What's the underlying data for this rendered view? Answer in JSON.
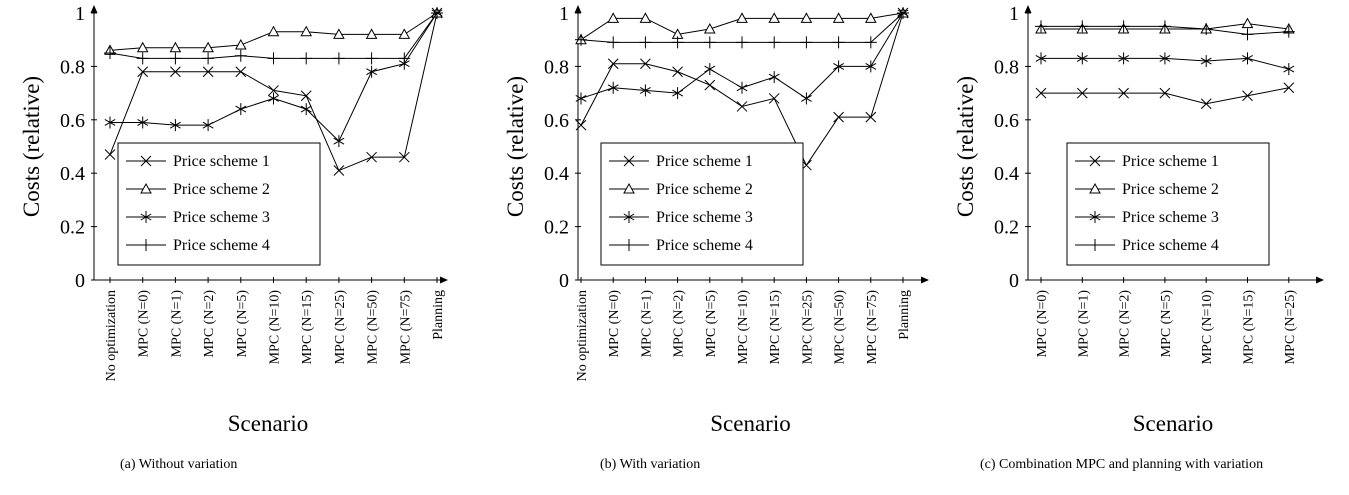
{
  "chart_data": [
    {
      "type": "line",
      "categories": [
        "No optimization",
        "MPC (N=0)",
        "MPC (N=1)",
        "MPC (N=2)",
        "MPC (N=5)",
        "MPC (N=10)",
        "MPC (N=15)",
        "MPC (N=25)",
        "MPC (N=50)",
        "MPC (N=75)",
        "Planning"
      ],
      "series": [
        {
          "name": "Price scheme 1",
          "marker": "x",
          "values": [
            0.47,
            0.78,
            0.78,
            0.78,
            0.78,
            0.71,
            0.69,
            0.41,
            0.46,
            0.46,
            1.0
          ]
        },
        {
          "name": "Price scheme 2",
          "marker": "triangle",
          "values": [
            0.86,
            0.87,
            0.87,
            0.87,
            0.88,
            0.93,
            0.93,
            0.92,
            0.92,
            0.92,
            1.0
          ]
        },
        {
          "name": "Price scheme 3",
          "marker": "star",
          "values": [
            0.59,
            0.59,
            0.58,
            0.58,
            0.64,
            0.68,
            0.64,
            0.52,
            0.78,
            0.81,
            1.0
          ]
        },
        {
          "name": "Price scheme 4",
          "marker": "plus",
          "values": [
            0.85,
            0.83,
            0.83,
            0.83,
            0.84,
            0.83,
            0.83,
            0.83,
            0.83,
            0.83,
            1.0
          ]
        }
      ],
      "xlabel": "Scenario",
      "ylabel": "Costs (relative)",
      "ylim": [
        0,
        1
      ],
      "yticks": [
        "0",
        "0.2",
        "0.4",
        "0.6",
        "0.8",
        "1"
      ],
      "legend": "lower-center",
      "grid": false
    },
    {
      "type": "line",
      "categories": [
        "No optimization",
        "MPC (N=0)",
        "MPC (N=1)",
        "MPC (N=2)",
        "MPC (N=5)",
        "MPC (N=10)",
        "MPC (N=15)",
        "MPC (N=25)",
        "MPC (N=50)",
        "MPC (N=75)",
        "Planning"
      ],
      "series": [
        {
          "name": "Price scheme 1",
          "marker": "x",
          "values": [
            0.58,
            0.81,
            0.81,
            0.78,
            0.73,
            0.65,
            0.68,
            0.43,
            0.61,
            0.61,
            1.0
          ]
        },
        {
          "name": "Price scheme 2",
          "marker": "triangle",
          "values": [
            0.9,
            0.98,
            0.98,
            0.92,
            0.94,
            0.98,
            0.98,
            0.98,
            0.98,
            0.98,
            1.0
          ]
        },
        {
          "name": "Price scheme 3",
          "marker": "star",
          "values": [
            0.68,
            0.72,
            0.71,
            0.7,
            0.79,
            0.72,
            0.76,
            0.68,
            0.8,
            0.8,
            1.0
          ]
        },
        {
          "name": "Price scheme 4",
          "marker": "plus",
          "values": [
            0.9,
            0.89,
            0.89,
            0.89,
            0.89,
            0.89,
            0.89,
            0.89,
            0.89,
            0.89,
            1.0
          ]
        }
      ],
      "xlabel": "Scenario",
      "ylabel": "Costs (relative)",
      "ylim": [
        0,
        1
      ],
      "yticks": [
        "0",
        "0.2",
        "0.4",
        "0.6",
        "0.8",
        "1"
      ],
      "legend": "lower-center",
      "grid": false
    },
    {
      "type": "line",
      "categories": [
        "MPC (N=0)",
        "MPC (N=1)",
        "MPC (N=2)",
        "MPC (N=5)",
        "MPC (N=10)",
        "MPC (N=15)",
        "MPC (N=25)"
      ],
      "series": [
        {
          "name": "Price scheme 1",
          "marker": "x",
          "values": [
            0.7,
            0.7,
            0.7,
            0.7,
            0.66,
            0.69,
            0.72
          ]
        },
        {
          "name": "Price scheme 2",
          "marker": "triangle",
          "values": [
            0.94,
            0.94,
            0.94,
            0.94,
            0.94,
            0.96,
            0.94
          ]
        },
        {
          "name": "Price scheme 3",
          "marker": "star",
          "values": [
            0.83,
            0.83,
            0.83,
            0.83,
            0.82,
            0.83,
            0.79
          ]
        },
        {
          "name": "Price scheme 4",
          "marker": "plus",
          "values": [
            0.95,
            0.95,
            0.95,
            0.95,
            0.94,
            0.92,
            0.93
          ]
        }
      ],
      "xlabel": "Scenario",
      "ylabel": "Costs (relative)",
      "ylim": [
        0,
        1
      ],
      "yticks": [
        "0",
        "0.2",
        "0.4",
        "0.6",
        "0.8",
        "1"
      ],
      "legend": "lower-center",
      "grid": false
    }
  ],
  "captions": [
    "(a) Without variation",
    "(b) With variation",
    "(c) Combination MPC and planning with variation"
  ]
}
